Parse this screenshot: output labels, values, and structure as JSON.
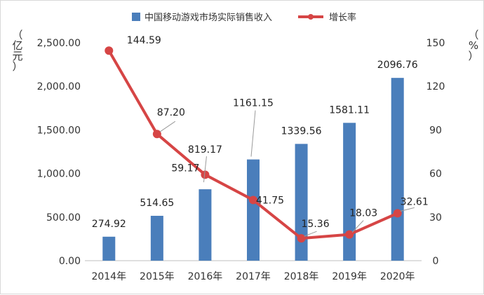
{
  "chart_data": {
    "type": "bar+line",
    "categories": [
      "2014年",
      "2015年",
      "2016年",
      "2017年",
      "2018年",
      "2019年",
      "2020年"
    ],
    "series": [
      {
        "name": "中国移动游戏市场实际销售收入",
        "type": "bar",
        "axis": "left",
        "values": [
          274.92,
          514.65,
          819.17,
          1161.15,
          1339.56,
          1581.11,
          2096.76
        ],
        "labels": [
          "274.92",
          "514.65",
          "819.17",
          "1161.15",
          "1339.56",
          "1581.11",
          "2096.76"
        ]
      },
      {
        "name": "增长率",
        "type": "line",
        "axis": "right",
        "values": [
          144.59,
          87.2,
          59.17,
          41.75,
          15.36,
          18.03,
          32.61
        ],
        "labels": [
          "144.59",
          "87.20",
          "59.17",
          "41.75",
          "15.36",
          "18.03",
          "32.61"
        ]
      }
    ],
    "y_left": {
      "label": "（亿元）",
      "ylim": [
        0,
        2500
      ],
      "ticks": [
        "0.00",
        "500.00",
        "1,000.00",
        "1,500.00",
        "2,000.00",
        "2,500.00"
      ]
    },
    "y_right": {
      "label": "（%）",
      "ylim": [
        0,
        150
      ],
      "ticks": [
        "0",
        "30",
        "60",
        "90",
        "120",
        "150"
      ]
    },
    "legend_position": "top",
    "grid": false,
    "colors": {
      "bar": "#4a7ebb",
      "line": "#d64545",
      "text": "#222222",
      "axis": "#bfbfbf"
    }
  },
  "axis_titles": {
    "left_paren_open": "（",
    "left_c1": "亿",
    "left_c2": "元",
    "left_paren_close": "）",
    "right_paren_open": "（",
    "right_c1": "%",
    "right_paren_close": "）"
  }
}
